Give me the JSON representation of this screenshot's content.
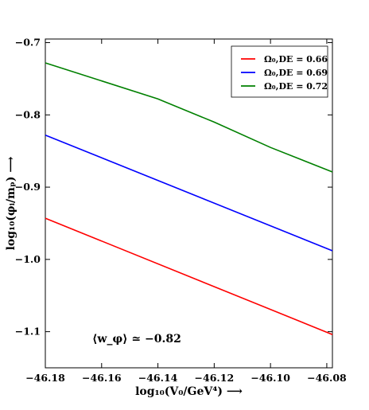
{
  "chart_data": {
    "type": "line",
    "xlabel": "log₁₀(V₀/GeV⁴) ⟶",
    "ylabel": "log₁₀(φᵢ/mₚ) ⟶",
    "xlim": [
      -46.18,
      -46.078
    ],
    "ylim": [
      -1.15,
      -0.695
    ],
    "xticks": [
      -46.18,
      -46.16,
      -46.14,
      -46.12,
      -46.1,
      -46.08
    ],
    "xtick_labels": [
      "−46.18",
      "−46.16",
      "−46.14",
      "−46.12",
      "−46.10",
      "−46.08"
    ],
    "yticks": [
      -0.7,
      -0.8,
      -0.9,
      -1.0,
      -1.1
    ],
    "ytick_labels": [
      "−0.7",
      "−0.8",
      "−0.9",
      "−1.0",
      "−1.1"
    ],
    "legend_placement": "top-right",
    "annotation": "⟨w_φ⟩ ≃ −0.82",
    "series": [
      {
        "name": "Ω₀,DE = 0.66",
        "color": "#ff0000",
        "x": [
          -46.18,
          -46.078
        ],
        "y": [
          -0.943,
          -1.104
        ]
      },
      {
        "name": "Ω₀,DE = 0.69",
        "color": "#0000ff",
        "x": [
          -46.18,
          -46.078
        ],
        "y": [
          -0.828,
          -0.988
        ]
      },
      {
        "name": "Ω₀,DE = 0.72",
        "color": "#008000",
        "x": [
          -46.18,
          -46.14,
          -46.12,
          -46.1,
          -46.078
        ],
        "y": [
          -0.728,
          -0.778,
          -0.81,
          -0.845,
          -0.879
        ]
      }
    ]
  }
}
